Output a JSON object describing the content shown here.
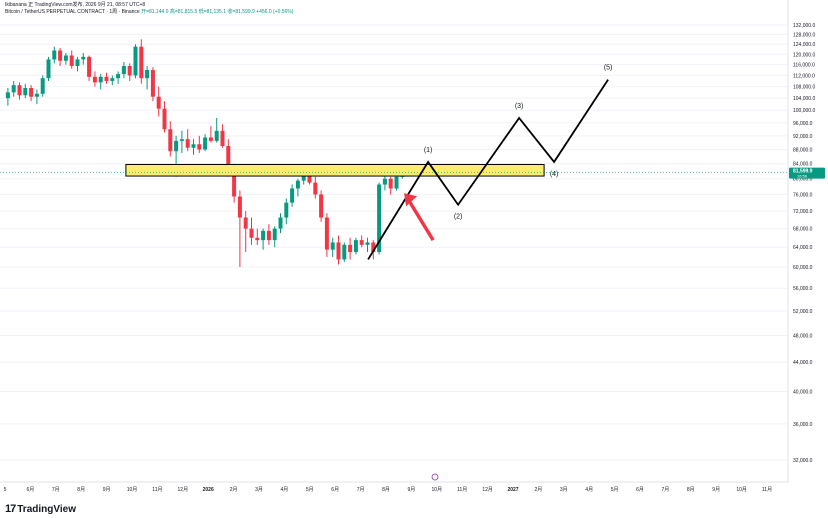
{
  "header": {
    "publisher": "Ikibanana 正 TradingView.com发布, 2026 9月 21, 08:57 UTC+8",
    "symbol": "Bitcoin / TetherUS PERPETUAL CONTRACT · 1周 · Binance",
    "ohlc": "开=81,144.0  高=81,815.5  低=81,135.1  收=81,599.9  +456.0 (+0.56%)"
  },
  "price_tag": {
    "value": "81,599.9",
    "sub": "16:56"
  },
  "footer": {
    "brand": "TradingView",
    "brand_mark": "17"
  },
  "colors": {
    "up": "#089981",
    "down": "#F23645",
    "zone_fill": "#FFEB6E",
    "zone_stroke": "#000000",
    "projection": "#000000",
    "arrow": "#F23645",
    "price_tag": "#089981",
    "grid": "#F0F3FA"
  },
  "chart_data": {
    "type": "candlestick",
    "symbol": "BTCUSDT.P",
    "timeframe": "1W",
    "y_axis": {
      "ticks": [
        "132,000.0",
        "128,000.0",
        "124,000.0",
        "120,000.0",
        "116,000.0",
        "112,000.0",
        "108,000.0",
        "104,000.0",
        "100,000.0",
        "96,000.0",
        "92,000.0",
        "88,000.0",
        "84,000.0",
        "80,000.0",
        "76,000.0",
        "72,000.0",
        "68,000.0",
        "64,000.0",
        "60,000.0",
        "56,000.0",
        "52,000.0",
        "48,000.0",
        "44,000.0",
        "40,000.0",
        "36,000.0",
        "32,000.0"
      ],
      "ylim": [
        30000,
        134000
      ],
      "scale": "log"
    },
    "x_axis": {
      "ticks": [
        "5",
        "6月",
        "7月",
        "8月",
        "9月",
        "10月",
        "11月",
        "12月",
        "2026",
        "2月",
        "3月",
        "4月",
        "5月",
        "6月",
        "7月",
        "8月",
        "9月",
        "10月",
        "11月",
        "12月",
        "2027",
        "2月",
        "3月",
        "4月",
        "5月",
        "6月",
        "7月",
        "8月",
        "9月",
        "10月",
        "11月"
      ]
    },
    "candles": [
      [
        104000,
        107500,
        101500,
        106000
      ],
      [
        106000,
        110000,
        104500,
        108500
      ],
      [
        108500,
        109500,
        103500,
        105000
      ],
      [
        105000,
        109000,
        104000,
        107500
      ],
      [
        107500,
        108500,
        103000,
        104500
      ],
      [
        104500,
        107000,
        102000,
        105500
      ],
      [
        105500,
        112000,
        104500,
        111000
      ],
      [
        111000,
        119000,
        110000,
        118000
      ],
      [
        118000,
        123000,
        116500,
        121500
      ],
      [
        121500,
        122500,
        115500,
        117500
      ],
      [
        117500,
        120500,
        116000,
        119500
      ],
      [
        119500,
        121500,
        114500,
        115500
      ],
      [
        115500,
        119000,
        113500,
        118000
      ],
      [
        118000,
        120500,
        116000,
        119000
      ],
      [
        119000,
        119500,
        110000,
        111500
      ],
      [
        111500,
        113500,
        108000,
        109500
      ],
      [
        109500,
        112500,
        107000,
        111500
      ],
      [
        111500,
        113000,
        109000,
        110000
      ],
      [
        110000,
        112000,
        108500,
        111000
      ],
      [
        111000,
        113500,
        109000,
        112500
      ],
      [
        112500,
        117000,
        111000,
        115500
      ],
      [
        115500,
        116500,
        110000,
        112000
      ],
      [
        112000,
        124000,
        111000,
        123000
      ],
      [
        123000,
        126000,
        109000,
        111000
      ],
      [
        111000,
        115500,
        107000,
        114000
      ],
      [
        114000,
        115000,
        103000,
        104500
      ],
      [
        104500,
        108000,
        98000,
        100500
      ],
      [
        100500,
        103000,
        93000,
        94000
      ],
      [
        94000,
        96500,
        86000,
        87500
      ],
      [
        87500,
        92000,
        80500,
        90500
      ],
      [
        90500,
        93500,
        87000,
        91000
      ],
      [
        91000,
        94000,
        87500,
        88500
      ],
      [
        88500,
        91000,
        86500,
        89500
      ],
      [
        89500,
        92000,
        87000,
        88000
      ],
      [
        88000,
        92500,
        87500,
        91500
      ],
      [
        91500,
        95000,
        90000,
        90500
      ],
      [
        90500,
        97500,
        90000,
        93500
      ],
      [
        93500,
        95500,
        88500,
        89000
      ],
      [
        89000,
        91000,
        80500,
        82000
      ],
      [
        82000,
        84000,
        74000,
        75500
      ],
      [
        75500,
        77000,
        60000,
        70500
      ],
      [
        70500,
        72000,
        63000,
        68000
      ],
      [
        68000,
        70500,
        64500,
        66000
      ],
      [
        66000,
        68000,
        64500,
        65500
      ],
      [
        65500,
        68000,
        63500,
        67500
      ],
      [
        67500,
        69000,
        64500,
        65500
      ],
      [
        65500,
        68500,
        64000,
        68000
      ],
      [
        68000,
        71500,
        67000,
        70500
      ],
      [
        70500,
        75000,
        69000,
        74000
      ],
      [
        74000,
        78500,
        73000,
        77500
      ],
      [
        77500,
        80000,
        75500,
        79500
      ],
      [
        79500,
        83500,
        78500,
        82500
      ],
      [
        82500,
        83000,
        78500,
        79000
      ],
      [
        79000,
        80500,
        75000,
        76000
      ],
      [
        76000,
        77000,
        69500,
        70500
      ],
      [
        70500,
        71500,
        62000,
        63500
      ],
      [
        63500,
        66000,
        62000,
        65000
      ],
      [
        65000,
        66500,
        60500,
        61500
      ],
      [
        61500,
        65000,
        61000,
        64500
      ],
      [
        64500,
        66000,
        61500,
        63000
      ],
      [
        63000,
        66000,
        62500,
        65500
      ],
      [
        65500,
        66500,
        64000,
        64500
      ],
      [
        64500,
        66000,
        63000,
        65000
      ],
      [
        65000,
        65500,
        61500,
        63000
      ],
      [
        63000,
        79000,
        62500,
        78500
      ],
      [
        78500,
        81500,
        77000,
        80000
      ],
      [
        80000,
        80500,
        76000,
        77500
      ],
      [
        77500,
        81500,
        77000,
        80500
      ],
      [
        80500,
        81500,
        80000,
        81144
      ],
      [
        81144,
        81815.5,
        81135.1,
        81599.9
      ]
    ],
    "current_price": 81599.9,
    "annotations": {
      "zone": [
        80700,
        83800
      ],
      "wave_labels": [
        "(1)",
        "(2)",
        "(3)",
        "(4)",
        "(5)"
      ],
      "wave_path": [
        [
          61500,
          "start"
        ],
        [
          84500,
          "(1)"
        ],
        [
          73500,
          "(2)"
        ],
        [
          97500,
          "(3)"
        ],
        [
          84500,
          "(4)"
        ],
        [
          110500,
          "(5)"
        ]
      ]
    }
  }
}
